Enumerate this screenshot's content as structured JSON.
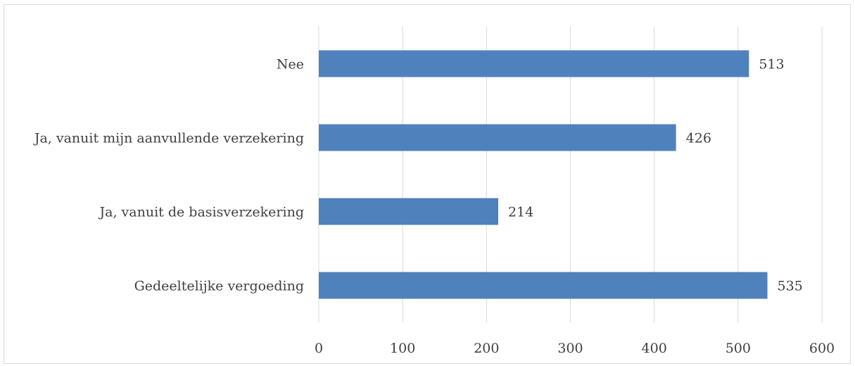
{
  "chart_data": {
    "type": "bar",
    "orientation": "horizontal",
    "categories": [
      "Gedeeltelijke vergoeding",
      "Ja, vanuit de basisverzekering",
      "Ja, vanuit mijn aanvullende verzekering",
      "Nee"
    ],
    "values": [
      535,
      214,
      426,
      513
    ],
    "xlim": [
      0,
      600
    ],
    "x_ticks": [
      "0",
      "100",
      "200",
      "300",
      "400",
      "500",
      "600"
    ],
    "grid": true,
    "data_labels": true,
    "bar_color": "#4f81bd",
    "grid_color": "#d9d9d9",
    "label_color": "#404040"
  }
}
